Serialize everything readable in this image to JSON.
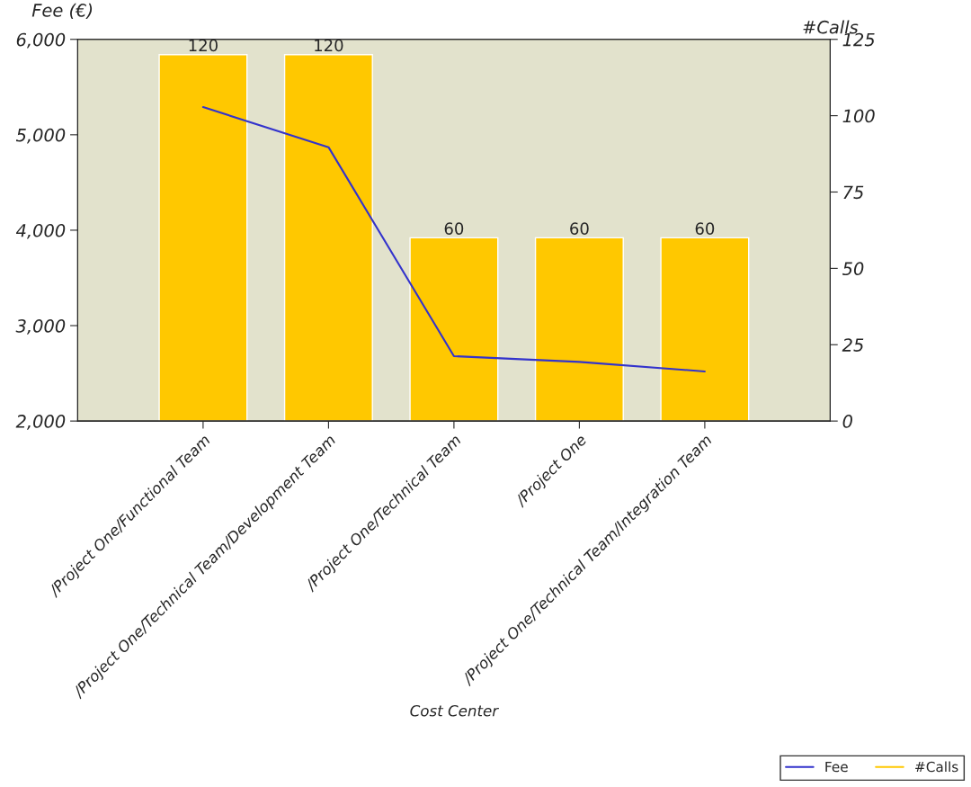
{
  "chart_data": {
    "type": "bar",
    "xlabel": "Cost Center",
    "ylabel": "Fee (€)",
    "y2label": "#Calls",
    "categories": [
      "/Project One/Functional Team",
      "/Project One/Technical Team/Development Team",
      "/Project One/Technical Team",
      "/Project One",
      "/Project One/Technical Team/Integration Team"
    ],
    "series": [
      {
        "name": "Fee",
        "type": "line",
        "color": "#3333cc",
        "values": [
          5290,
          4870,
          2680,
          2620,
          2520
        ]
      },
      {
        "name": "#Calls",
        "axis": "y2",
        "color": "#ffc800",
        "values": [
          120,
          120,
          60,
          60,
          60
        ],
        "value_labels": [
          "120",
          "120",
          "60",
          "60",
          "60"
        ]
      }
    ],
    "ylim": [
      2000,
      6000
    ],
    "yticks": [
      {
        "value": 2000,
        "label": "2,000"
      },
      {
        "value": 3000,
        "label": "3,000"
      },
      {
        "value": 4000,
        "label": "4,000"
      },
      {
        "value": 5000,
        "label": "5,000"
      },
      {
        "value": 6000,
        "label": "6,000"
      }
    ],
    "y2lim": [
      0,
      125
    ],
    "y2ticks": [
      0,
      25,
      50,
      75,
      100,
      125
    ],
    "grid": false,
    "legend": "bottom right"
  }
}
